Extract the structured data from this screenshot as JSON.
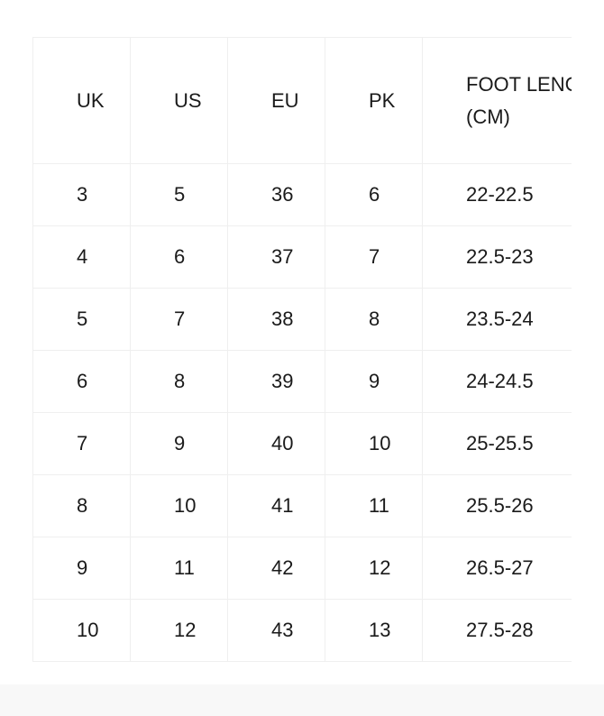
{
  "table": {
    "headers": [
      "UK",
      "US",
      "EU",
      "PK",
      "FOOT LENGTH (CM)"
    ],
    "rows": [
      [
        "3",
        "5",
        "36",
        "6",
        "22-22.5"
      ],
      [
        "4",
        "6",
        "37",
        "7",
        "22.5-23"
      ],
      [
        "5",
        "7",
        "38",
        "8",
        "23.5-24"
      ],
      [
        "6",
        "8",
        "39",
        "9",
        "24-24.5"
      ],
      [
        "7",
        "9",
        "40",
        "10",
        "25-25.5"
      ],
      [
        "8",
        "10",
        "41",
        "11",
        "25.5-26"
      ],
      [
        "9",
        "11",
        "42",
        "12",
        "26.5-27"
      ],
      [
        "10",
        "12",
        "43",
        "13",
        "27.5-28"
      ]
    ]
  }
}
